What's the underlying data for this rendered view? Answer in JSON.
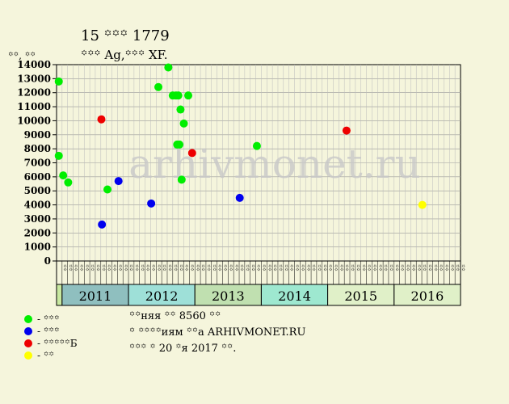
{
  "header": {
    "title": "15 ꙳꙳꙳ 1779",
    "subtitle": "꙳꙳꙳ Ag,꙳꙳꙳ XF.",
    "yunit": "꙳꙳, ꙳꙳"
  },
  "legend": [
    {
      "label": "- ꙳꙳꙳",
      "color": "#00ee00"
    },
    {
      "label": "- ꙳꙳꙳",
      "color": "#0000ee"
    },
    {
      "label": "- ꙳꙳꙳꙳꙳Б",
      "color": "#ee0000"
    },
    {
      "label": "- ꙳꙳",
      "color": "#ffff00"
    }
  ],
  "info": {
    "line1": "꙳꙳няя ꙳꙳ 8560 ꙳꙳",
    "line2": "꙳ ꙳꙳꙳꙳иям ꙳꙳а ARHIVMONET.RU",
    "line3": "꙳꙳꙳ ꙳ 20 ꙳я 2017 ꙳꙳."
  },
  "watermark": "arhivmonet.ru",
  "chart_data": {
    "type": "scatter",
    "ylim": [
      0,
      14000
    ],
    "yticks": [
      0,
      1000,
      2000,
      3000,
      4000,
      5000,
      6000,
      7000,
      8000,
      9000,
      10000,
      11000,
      12000,
      13000,
      14000
    ],
    "months": [
      "꙳꙳",
      "꙳꙳",
      "꙳꙳",
      "꙳꙳",
      "꙳꙳",
      "꙳꙳",
      "꙳꙳"
    ],
    "years": [
      {
        "label": "2011",
        "color": "#8fbfbf"
      },
      {
        "label": "2012",
        "color": "#9ee0d8"
      },
      {
        "label": "2013",
        "color": "#c0e0b0"
      },
      {
        "label": "2014",
        "color": "#9ee8d0"
      },
      {
        "label": "2015",
        "color": "#e0f0c8"
      },
      {
        "label": "2016",
        "color": "#e0f0c8"
      }
    ],
    "year_start_color": "#c8e8a0",
    "series": [
      {
        "color": "#00ee00",
        "points": [
          [
            0.4,
            12800
          ],
          [
            0.4,
            7500
          ],
          [
            1.2,
            6100
          ],
          [
            2.1,
            5600
          ],
          [
            9.2,
            5100
          ],
          [
            18.4,
            12400
          ],
          [
            20.2,
            13800
          ],
          [
            21.0,
            11800
          ],
          [
            21.6,
            11800
          ],
          [
            22.0,
            11800
          ],
          [
            21.8,
            8300
          ],
          [
            22.2,
            8300
          ],
          [
            22.4,
            10800
          ],
          [
            23.0,
            9800
          ],
          [
            22.6,
            5800
          ],
          [
            23.8,
            11800
          ],
          [
            36.2,
            8200
          ]
        ]
      },
      {
        "color": "#0000ee",
        "points": [
          [
            8.2,
            2600
          ],
          [
            11.2,
            5700
          ],
          [
            17.1,
            4100
          ],
          [
            33.1,
            4500
          ]
        ]
      },
      {
        "color": "#ee0000",
        "points": [
          [
            8.1,
            10100
          ],
          [
            24.5,
            7700
          ],
          [
            52.4,
            9300
          ]
        ]
      },
      {
        "color": "#ffff00",
        "points": [
          [
            66.1,
            4000
          ]
        ]
      }
    ]
  }
}
